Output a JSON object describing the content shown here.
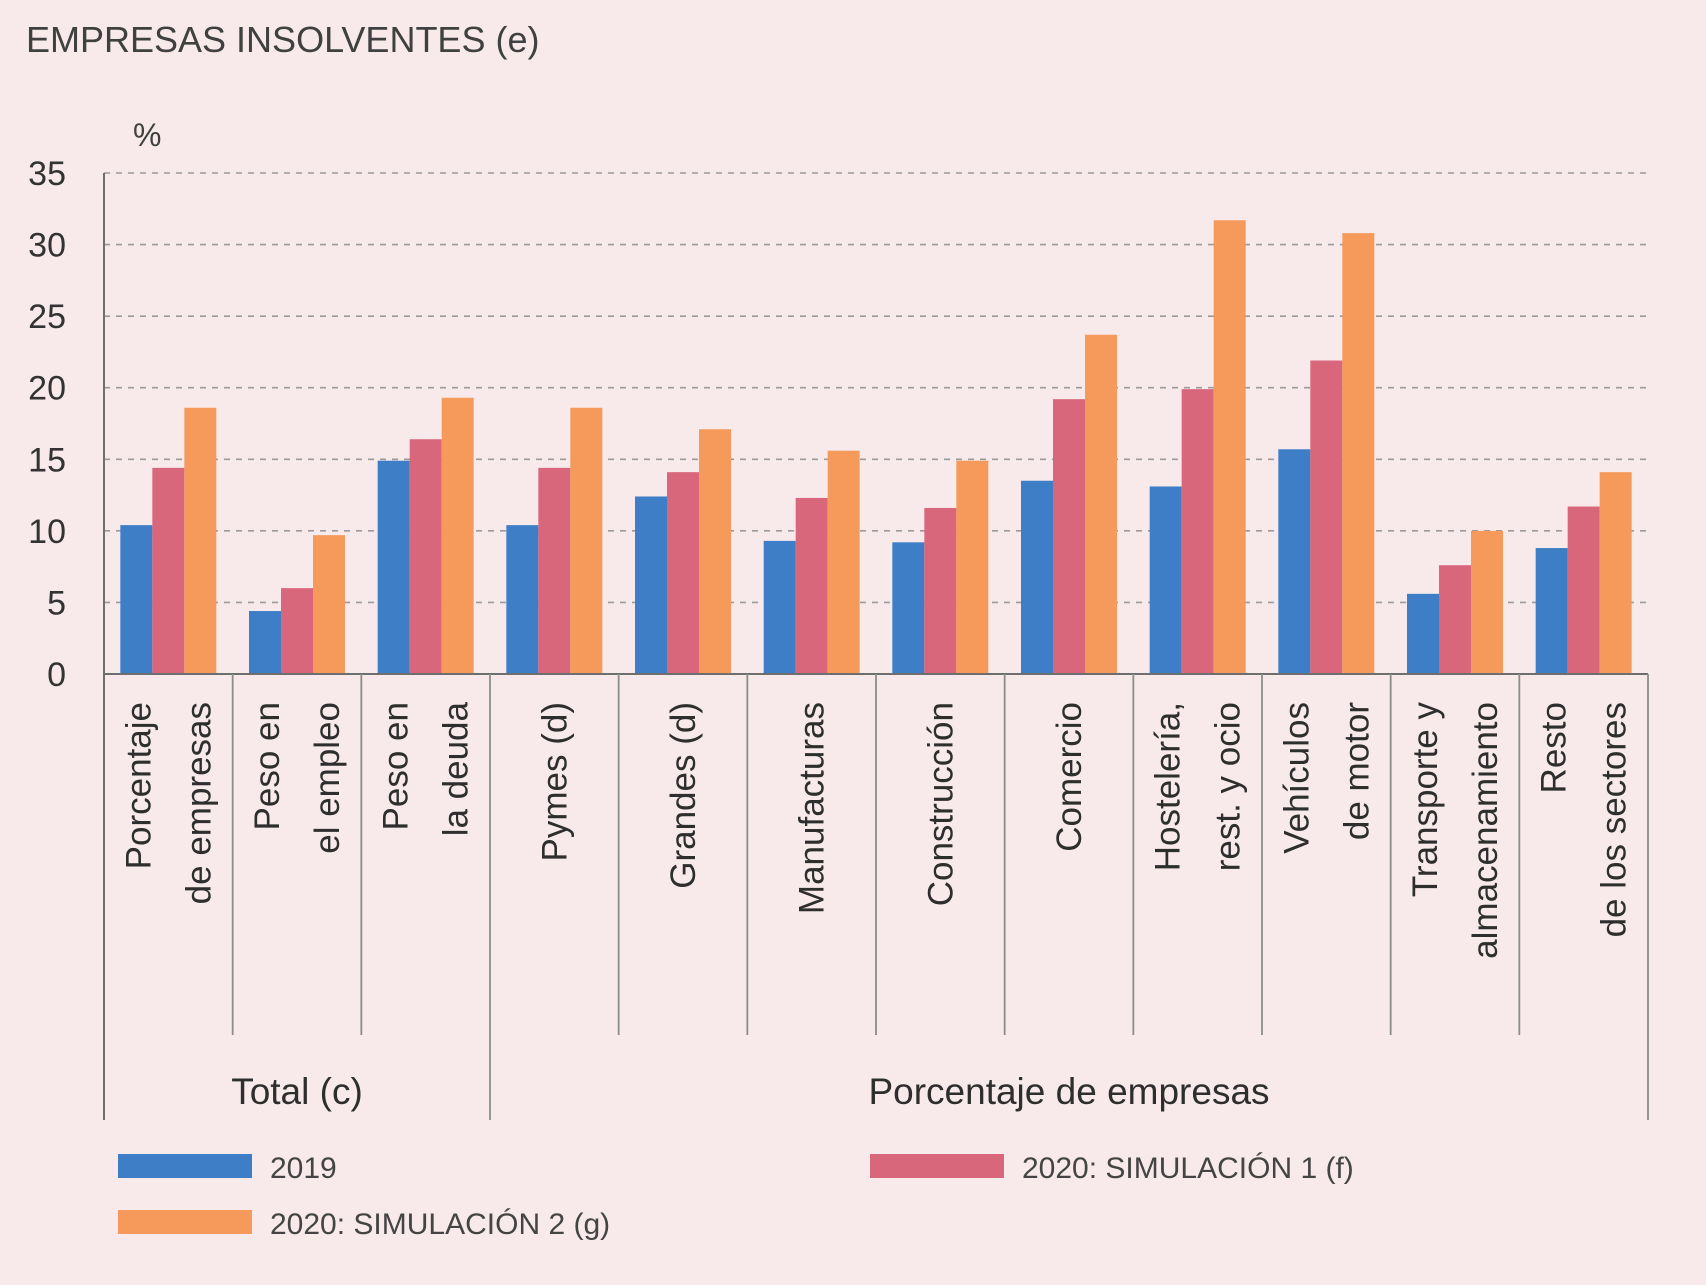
{
  "chart_data": {
    "type": "bar",
    "title": "EMPRESAS INSOLVENTES (e)",
    "ylabel": "%",
    "ylim": [
      0,
      35
    ],
    "yticks": [
      0,
      5,
      10,
      15,
      20,
      25,
      30,
      35
    ],
    "grid": true,
    "categories": [
      [
        "Porcentaje",
        "de empresas"
      ],
      [
        "Peso en",
        "el empleo"
      ],
      [
        "Peso en",
        "la deuda"
      ],
      [
        "Pymes (d)"
      ],
      [
        "Grandes (d)"
      ],
      [
        "Manufacturas"
      ],
      [
        "Construcción"
      ],
      [
        "Comercio"
      ],
      [
        "Hostelería,",
        "rest. y ocio"
      ],
      [
        "Vehículos",
        "de motor"
      ],
      [
        "Transporte y",
        "almacenamiento"
      ],
      [
        "Resto",
        "de los sectores"
      ]
    ],
    "groups": [
      {
        "label": "Total (c)",
        "start": 0,
        "end": 2
      },
      {
        "label": "Porcentaje de empresas",
        "start": 3,
        "end": 11
      }
    ],
    "series": [
      {
        "name": "2019",
        "color": "#3d7ec6",
        "values": [
          10.4,
          4.4,
          14.9,
          10.4,
          12.4,
          9.3,
          9.2,
          13.5,
          13.1,
          15.7,
          5.6,
          8.8
        ]
      },
      {
        "name": "2020: SIMULACIÓN 1 (f)",
        "color": "#d9677b",
        "values": [
          14.4,
          6.0,
          16.4,
          14.4,
          14.1,
          12.3,
          11.6,
          19.2,
          19.9,
          21.9,
          7.6,
          11.7
        ]
      },
      {
        "name": "2020: SIMULACIÓN 2 (g)",
        "color": "#f59a5a",
        "values": [
          18.6,
          9.7,
          19.3,
          18.6,
          17.1,
          15.6,
          14.9,
          23.7,
          31.7,
          30.8,
          10.0,
          14.1
        ]
      }
    ]
  }
}
